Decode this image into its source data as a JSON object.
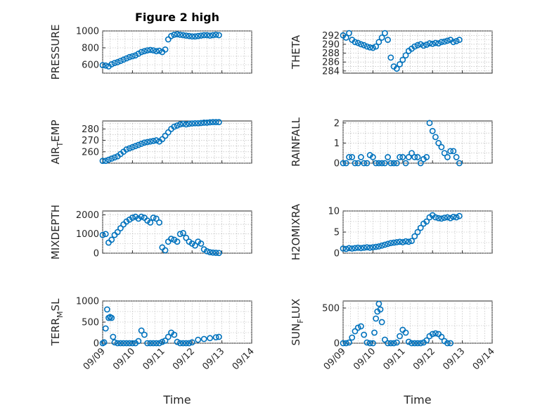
{
  "figure": {
    "title": "Figure 2 high",
    "xlabel": "Time"
  },
  "colors": {
    "marker": "#0072BD",
    "axis": "#262626"
  },
  "chart_data": [
    {
      "type": "scatter",
      "id": "pressure",
      "ylabel": "PRESSURE",
      "xlim": [
        0,
        5
      ],
      "ylim": [
        500,
        1000
      ],
      "yticks": [
        600,
        800,
        1000
      ],
      "xticks": [],
      "grid": true,
      "x": [
        0,
        0.1,
        0.2,
        0.3,
        0.4,
        0.5,
        0.6,
        0.7,
        0.8,
        0.9,
        1.0,
        1.1,
        1.2,
        1.3,
        1.4,
        1.5,
        1.6,
        1.7,
        1.8,
        1.9,
        2.0,
        2.1,
        2.2,
        2.3,
        2.4,
        2.5,
        2.6,
        2.7,
        2.8,
        2.9,
        3.0,
        3.1,
        3.2,
        3.3,
        3.4,
        3.5,
        3.6,
        3.7,
        3.8,
        3.9
      ],
      "y": [
        595,
        590,
        580,
        605,
        620,
        630,
        645,
        660,
        675,
        690,
        700,
        710,
        730,
        750,
        760,
        770,
        775,
        770,
        760,
        765,
        750,
        780,
        900,
        940,
        955,
        960,
        955,
        950,
        945,
        940,
        935,
        935,
        940,
        945,
        950,
        950,
        945,
        950,
        955,
        950
      ]
    },
    {
      "type": "scatter",
      "id": "theta",
      "ylabel": "THETA",
      "xlim": [
        0,
        5
      ],
      "ylim": [
        283.5,
        293
      ],
      "yticks": [
        284,
        286,
        288,
        290,
        292
      ],
      "xticks": [],
      "grid": true,
      "x": [
        0,
        0.1,
        0.2,
        0.3,
        0.4,
        0.5,
        0.6,
        0.7,
        0.8,
        0.9,
        1.0,
        1.1,
        1.2,
        1.3,
        1.4,
        1.5,
        1.6,
        1.7,
        1.8,
        1.9,
        2.0,
        2.1,
        2.2,
        2.3,
        2.4,
        2.5,
        2.6,
        2.7,
        2.8,
        2.9,
        3.0,
        3.1,
        3.2,
        3.3,
        3.4,
        3.5,
        3.6,
        3.7,
        3.8,
        3.9
      ],
      "y": [
        292,
        291.5,
        292.5,
        291,
        290.5,
        290.3,
        290,
        289.8,
        289.5,
        289.3,
        289.2,
        289.5,
        290.5,
        291.5,
        292.5,
        291,
        287,
        285,
        284.5,
        285.5,
        286.5,
        287.5,
        288.5,
        289,
        289.5,
        289.8,
        290,
        289.7,
        289.9,
        290.2,
        290.1,
        290.3,
        290.2,
        290.5,
        290.6,
        290.8,
        291,
        290.5,
        290.7,
        291
      ]
    },
    {
      "type": "scatter",
      "id": "air_temp",
      "ylabel": "AIR_TEMP",
      "ylabel_display": {
        "pre": "AIR",
        "sub": "T",
        "post": "EMP"
      },
      "xlim": [
        0,
        5
      ],
      "ylim": [
        250,
        287
      ],
      "yticks": [
        260,
        270,
        280
      ],
      "xticks": [],
      "grid": true,
      "x": [
        0,
        0.1,
        0.2,
        0.3,
        0.4,
        0.5,
        0.6,
        0.7,
        0.8,
        0.9,
        1.0,
        1.1,
        1.2,
        1.3,
        1.4,
        1.5,
        1.6,
        1.7,
        1.8,
        1.9,
        2.0,
        2.1,
        2.2,
        2.3,
        2.4,
        2.5,
        2.6,
        2.7,
        2.8,
        2.9,
        3.0,
        3.1,
        3.2,
        3.3,
        3.4,
        3.5,
        3.6,
        3.7,
        3.8,
        3.9
      ],
      "y": [
        252,
        252,
        253,
        254,
        255,
        256,
        258,
        260,
        262,
        263,
        264,
        265,
        266,
        267,
        268,
        268.5,
        269,
        269.5,
        270,
        269,
        271,
        274,
        277,
        280,
        282,
        283,
        284,
        284.5,
        284,
        284.5,
        284.8,
        285,
        285,
        285.2,
        285.5,
        285.5,
        285.8,
        286,
        286,
        286
      ]
    },
    {
      "type": "scatter",
      "id": "rainfall",
      "ylabel": "RAINFALL",
      "xlim": [
        0,
        5
      ],
      "ylim": [
        0,
        2.1
      ],
      "yticks": [
        0,
        1,
        2
      ],
      "xticks": [],
      "grid": true,
      "x": [
        0,
        0.1,
        0.2,
        0.3,
        0.4,
        0.5,
        0.6,
        0.7,
        0.8,
        0.9,
        1.0,
        1.1,
        1.2,
        1.3,
        1.4,
        1.5,
        1.6,
        1.7,
        1.8,
        1.9,
        2.0,
        2.1,
        2.2,
        2.3,
        2.4,
        2.5,
        2.6,
        2.7,
        2.8,
        2.9,
        3.0,
        3.1,
        3.2,
        3.3,
        3.4,
        3.5,
        3.6,
        3.7,
        3.8,
        3.9
      ],
      "y": [
        0,
        0,
        0.3,
        0.3,
        0,
        0,
        0.3,
        0,
        0,
        0.4,
        0.3,
        0,
        0,
        0,
        0,
        0.3,
        0,
        0,
        0,
        0.3,
        0.3,
        0,
        0.3,
        0.5,
        0.3,
        0.3,
        0,
        0.2,
        0.3,
        2.0,
        1.6,
        1.3,
        1.0,
        0.8,
        0.5,
        0.3,
        0.6,
        0.6,
        0.3,
        0
      ]
    },
    {
      "type": "scatter",
      "id": "mixdepth",
      "ylabel": "MIXDEPTH",
      "xlim": [
        0,
        5
      ],
      "ylim": [
        0,
        2200
      ],
      "yticks": [
        0,
        1000,
        2000
      ],
      "xticks": [],
      "grid": true,
      "x": [
        0,
        0.1,
        0.2,
        0.3,
        0.4,
        0.5,
        0.6,
        0.7,
        0.8,
        0.9,
        1.0,
        1.1,
        1.2,
        1.3,
        1.4,
        1.5,
        1.6,
        1.7,
        1.8,
        1.9,
        2.0,
        2.1,
        2.2,
        2.3,
        2.4,
        2.5,
        2.6,
        2.7,
        2.8,
        2.9,
        3.0,
        3.1,
        3.2,
        3.3,
        3.4,
        3.5,
        3.6,
        3.7,
        3.8,
        3.9
      ],
      "y": [
        950,
        1000,
        550,
        700,
        950,
        1100,
        1300,
        1500,
        1650,
        1750,
        1850,
        1900,
        1800,
        1900,
        1850,
        1700,
        1600,
        1850,
        1800,
        1600,
        300,
        150,
        600,
        750,
        700,
        600,
        1000,
        1050,
        800,
        600,
        500,
        400,
        600,
        500,
        200,
        100,
        50,
        30,
        20,
        10
      ]
    },
    {
      "type": "scatter",
      "id": "h2omixra",
      "ylabel": "H2OMIXRA",
      "xlim": [
        0,
        5
      ],
      "ylim": [
        0,
        10
      ],
      "yticks": [
        0,
        5,
        10
      ],
      "xticks": [],
      "grid": true,
      "x": [
        0,
        0.1,
        0.2,
        0.3,
        0.4,
        0.5,
        0.6,
        0.7,
        0.8,
        0.9,
        1.0,
        1.1,
        1.2,
        1.3,
        1.4,
        1.5,
        1.6,
        1.7,
        1.8,
        1.9,
        2.0,
        2.1,
        2.2,
        2.3,
        2.4,
        2.5,
        2.6,
        2.7,
        2.8,
        2.9,
        3.0,
        3.1,
        3.2,
        3.3,
        3.4,
        3.5,
        3.6,
        3.7,
        3.8,
        3.9
      ],
      "y": [
        1.1,
        1.0,
        1.2,
        1.1,
        1.2,
        1.3,
        1.2,
        1.3,
        1.4,
        1.3,
        1.4,
        1.5,
        1.6,
        1.8,
        2.0,
        2.2,
        2.4,
        2.5,
        2.6,
        2.7,
        2.6,
        2.8,
        2.7,
        2.9,
        4.0,
        5.0,
        6.0,
        7.0,
        7.5,
        8.5,
        9.0,
        8.5,
        8.3,
        8.2,
        8.4,
        8.5,
        8.3,
        8.6,
        8.5,
        8.8
      ]
    },
    {
      "type": "scatter",
      "id": "terr_msl",
      "ylabel": "TERR_MSL",
      "ylabel_display": {
        "pre": "TERR",
        "sub": "M",
        "post": "SL"
      },
      "xlim": [
        0,
        5
      ],
      "ylim": [
        0,
        1000
      ],
      "yticks": [
        0,
        500,
        1000
      ],
      "xticks": [
        "09/09",
        "09/10",
        "09/11",
        "09/12",
        "09/13",
        "09/14"
      ],
      "grid": true,
      "x": [
        0,
        0.05,
        0.1,
        0.15,
        0.2,
        0.25,
        0.3,
        0.35,
        0.4,
        0.5,
        0.6,
        0.7,
        0.8,
        0.9,
        1.0,
        1.1,
        1.2,
        1.3,
        1.4,
        1.5,
        1.6,
        1.7,
        1.8,
        1.9,
        2.0,
        2.1,
        2.2,
        2.3,
        2.4,
        2.5,
        2.6,
        2.7,
        2.8,
        2.9,
        3.0,
        3.2,
        3.4,
        3.6,
        3.8,
        3.9
      ],
      "y": [
        0,
        20,
        350,
        800,
        600,
        620,
        600,
        150,
        20,
        0,
        0,
        0,
        0,
        0,
        0,
        0,
        50,
        300,
        200,
        0,
        0,
        0,
        0,
        0,
        30,
        60,
        150,
        250,
        200,
        30,
        0,
        0,
        0,
        0,
        20,
        80,
        100,
        120,
        140,
        150
      ]
    },
    {
      "type": "scatter",
      "id": "sun_flux",
      "ylabel": "SUN_FLUX",
      "ylabel_display": {
        "pre": "SUN",
        "sub": "F",
        "post": "LUX"
      },
      "xlim": [
        0,
        5
      ],
      "ylim": [
        0,
        600
      ],
      "yticks": [
        0,
        500
      ],
      "xticks": [
        "09/09",
        "09/10",
        "09/11",
        "09/12",
        "09/13",
        "09/14"
      ],
      "grid": true,
      "x": [
        0,
        0.1,
        0.2,
        0.3,
        0.4,
        0.5,
        0.6,
        0.7,
        0.8,
        0.9,
        1.0,
        1.05,
        1.1,
        1.15,
        1.2,
        1.25,
        1.3,
        1.4,
        1.5,
        1.6,
        1.7,
        1.8,
        1.9,
        2.0,
        2.1,
        2.2,
        2.3,
        2.4,
        2.5,
        2.6,
        2.7,
        2.8,
        2.9,
        3.0,
        3.1,
        3.2,
        3.3,
        3.4,
        3.5,
        3.6
      ],
      "y": [
        0,
        0,
        10,
        80,
        170,
        220,
        240,
        120,
        10,
        0,
        0,
        150,
        350,
        450,
        560,
        480,
        300,
        50,
        0,
        0,
        0,
        10,
        100,
        190,
        150,
        20,
        0,
        0,
        0,
        0,
        10,
        40,
        100,
        130,
        140,
        130,
        90,
        30,
        0,
        0
      ]
    }
  ]
}
